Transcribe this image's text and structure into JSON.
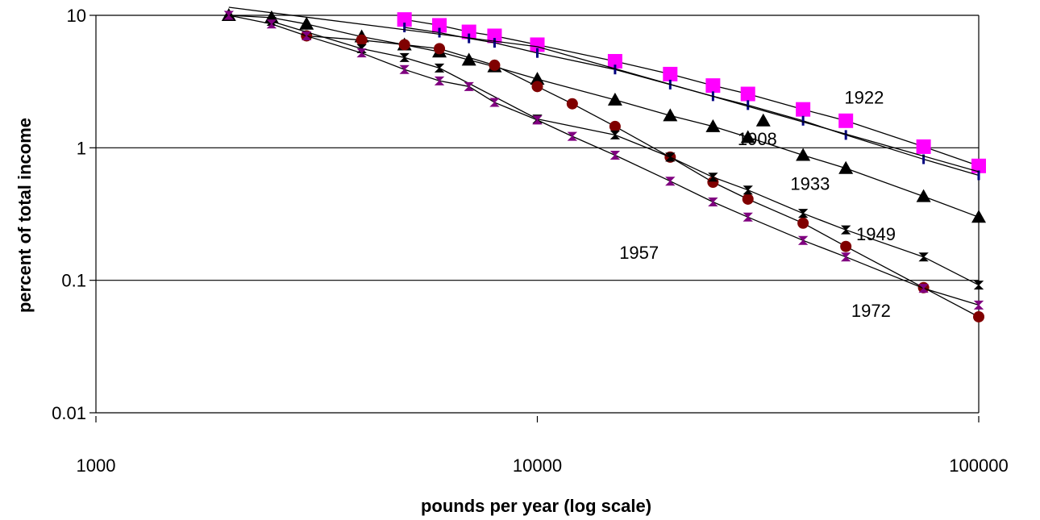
{
  "chart_data": {
    "type": "scatter",
    "title": "",
    "xlabel": "pounds per year (log scale)",
    "ylabel": "percent of total income",
    "xscale": "log",
    "yscale": "log",
    "xlim": [
      1000,
      100000
    ],
    "ylim": [
      0.01,
      10
    ],
    "x_ticks": [
      "1000",
      "10000",
      "100000"
    ],
    "y_ticks": [
      "10",
      "1",
      "0.1",
      "0.01"
    ],
    "grid": "horizontal",
    "legend": "none",
    "annotations": [
      {
        "text": "1922",
        "x": 55000,
        "y": 2.15
      },
      {
        "text": "1908",
        "x": 31500,
        "y": 1.05
      },
      {
        "text": "1933",
        "x": 41500,
        "y": 0.48
      },
      {
        "text": "1949",
        "x": 58500,
        "y": 0.2
      },
      {
        "text": "1957",
        "x": 17000,
        "y": 0.145
      },
      {
        "text": "1972",
        "x": 57000,
        "y": 0.053
      }
    ],
    "colors": {
      "magenta": "#ff00ff",
      "black": "#000000",
      "darkred": "#800000",
      "purple": "#800080",
      "navy": "#000080"
    },
    "series": [
      {
        "marker": "square",
        "color": "#ff00ff",
        "x": [
          5000,
          6000,
          7000,
          8000,
          10000,
          15000,
          20000,
          25000,
          30000,
          40000,
          50000,
          75000,
          100000
        ],
        "y": [
          9.3,
          8.4,
          7.5,
          7.0,
          6.0,
          4.5,
          3.6,
          2.95,
          2.55,
          1.95,
          1.6,
          1.02,
          0.73
        ]
      },
      {
        "marker": "tick",
        "color": "#000080",
        "x": [
          5000,
          6000,
          7000,
          8000,
          10000,
          15000,
          20000,
          25000,
          30000,
          40000,
          50000,
          75000,
          100000
        ],
        "y": [
          8.1,
          7.4,
          6.7,
          6.2,
          5.2,
          3.9,
          3.0,
          2.45,
          2.1,
          1.6,
          1.25,
          0.82,
          0.62
        ]
      },
      {
        "marker": "triangle",
        "color": "#000000",
        "x": [
          2000,
          2500,
          3000,
          4000,
          5000,
          6000,
          7000,
          8000,
          10000,
          15000,
          20000,
          25000,
          30000,
          40000,
          50000,
          75000,
          100000
        ],
        "y": [
          10,
          9.6,
          8.6,
          6.9,
          6.0,
          5.3,
          4.6,
          4.1,
          3.3,
          2.3,
          1.75,
          1.45,
          1.2,
          0.88,
          0.7,
          0.43,
          0.3
        ]
      },
      {
        "marker": "triangle",
        "color": "#000000",
        "x": [
          32500
        ],
        "y": [
          1.6
        ]
      },
      {
        "marker": "circle",
        "color": "#800000",
        "x": [
          3000,
          4000,
          5000,
          6000,
          8000,
          10000,
          12000,
          15000,
          20000,
          25000,
          30000,
          40000,
          50000,
          75000,
          100000
        ],
        "y": [
          7.0,
          6.5,
          6.0,
          5.6,
          4.2,
          2.9,
          2.15,
          1.45,
          0.85,
          0.55,
          0.41,
          0.27,
          0.18,
          0.088,
          0.053
        ]
      },
      {
        "marker": "bowtie",
        "color": "#000000",
        "x": [
          2500,
          4000,
          5000,
          6000,
          10000,
          15000,
          20000,
          25000,
          30000,
          40000,
          50000,
          75000,
          100000
        ],
        "y": [
          9.0,
          5.6,
          4.8,
          4.0,
          1.65,
          1.25,
          0.85,
          0.6,
          0.48,
          0.32,
          0.24,
          0.15,
          0.092
        ]
      },
      {
        "marker": "bowtie",
        "color": "#800080",
        "x": [
          2000,
          2500,
          3000,
          4000,
          5000,
          6000,
          7000,
          8000,
          10000,
          12000,
          15000,
          20000,
          25000,
          30000,
          40000,
          50000,
          75000,
          100000
        ],
        "y": [
          10,
          8.6,
          7.0,
          5.2,
          3.9,
          3.2,
          2.9,
          2.2,
          1.62,
          1.22,
          0.88,
          0.56,
          0.39,
          0.3,
          0.2,
          0.15,
          0.087,
          0.065
        ]
      },
      {
        "marker": "none",
        "color": "#000000",
        "x": [
          2000,
          10000,
          100000
        ],
        "y": [
          11.5,
          5.8,
          0.66
        ]
      }
    ]
  }
}
